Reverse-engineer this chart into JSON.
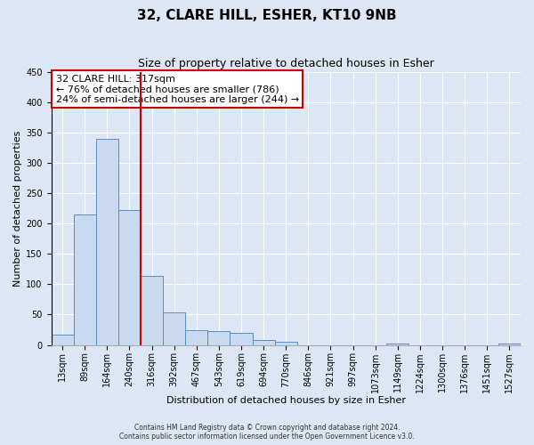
{
  "title": "32, CLARE HILL, ESHER, KT10 9NB",
  "subtitle": "Size of property relative to detached houses in Esher",
  "xlabel": "Distribution of detached houses by size in Esher",
  "ylabel": "Number of detached properties",
  "bin_labels": [
    "13sqm",
    "89sqm",
    "164sqm",
    "240sqm",
    "316sqm",
    "392sqm",
    "467sqm",
    "543sqm",
    "619sqm",
    "694sqm",
    "770sqm",
    "846sqm",
    "921sqm",
    "997sqm",
    "1073sqm",
    "1149sqm",
    "1224sqm",
    "1300sqm",
    "1376sqm",
    "1451sqm",
    "1527sqm"
  ],
  "bar_heights": [
    17,
    215,
    340,
    222,
    113,
    53,
    25,
    23,
    20,
    8,
    5,
    0,
    0,
    0,
    0,
    3,
    0,
    0,
    0,
    0,
    3
  ],
  "bar_color": "#c9d9ef",
  "bar_edge_color": "#5b8ec4",
  "vline_color": "#cc0000",
  "annotation_text": "32 CLARE HILL: 317sqm\n← 76% of detached houses are smaller (786)\n24% of semi-detached houses are larger (244) →",
  "annotation_box_color": "#ffffff",
  "annotation_box_edge_color": "#cc0000",
  "ylim": [
    0,
    450
  ],
  "yticks": [
    0,
    50,
    100,
    150,
    200,
    250,
    300,
    350,
    400,
    450
  ],
  "footer_line1": "Contains HM Land Registry data © Crown copyright and database right 2024.",
  "footer_line2": "Contains public sector information licensed under the Open Government Licence v3.0.",
  "background_color": "#dce6f5",
  "plot_bg_color": "#dce6f5",
  "grid_color": "#ffffff",
  "title_fontsize": 11,
  "subtitle_fontsize": 9,
  "axis_label_fontsize": 8,
  "tick_fontsize": 7,
  "annotation_fontsize": 8
}
